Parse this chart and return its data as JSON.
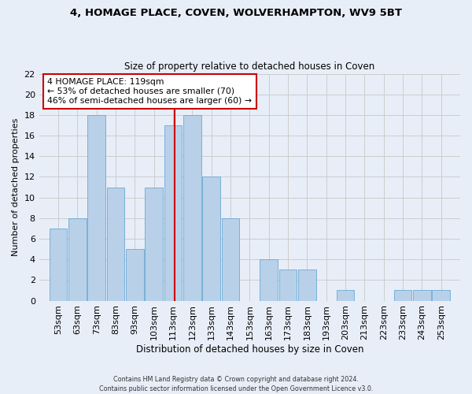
{
  "title": "4, HOMAGE PLACE, COVEN, WOLVERHAMPTON, WV9 5BT",
  "subtitle": "Size of property relative to detached houses in Coven",
  "xlabel": "Distribution of detached houses by size in Coven",
  "ylabel": "Number of detached properties",
  "bin_labels": [
    "53sqm",
    "63sqm",
    "73sqm",
    "83sqm",
    "93sqm",
    "103sqm",
    "113sqm",
    "123sqm",
    "133sqm",
    "143sqm",
    "153sqm",
    "163sqm",
    "173sqm",
    "183sqm",
    "193sqm",
    "203sqm",
    "213sqm",
    "223sqm",
    "233sqm",
    "243sqm",
    "253sqm"
  ],
  "bin_edges": [
    53,
    63,
    73,
    83,
    93,
    103,
    113,
    123,
    133,
    143,
    153,
    163,
    173,
    183,
    193,
    203,
    213,
    223,
    233,
    243,
    253
  ],
  "counts": [
    7,
    8,
    18,
    11,
    5,
    11,
    17,
    18,
    12,
    8,
    0,
    4,
    3,
    3,
    0,
    1,
    0,
    0,
    1,
    1,
    1
  ],
  "bar_color": "#b8d0e8",
  "bar_edge_color": "#6aaad4",
  "grid_color": "#cccccc",
  "background_color": "#e8eef8",
  "plot_bg_color": "#e8eef8",
  "property_line_x": 119,
  "property_line_color": "#cc0000",
  "annotation_text": "4 HOMAGE PLACE: 119sqm\n← 53% of detached houses are smaller (70)\n46% of semi-detached houses are larger (60) →",
  "annotation_box_facecolor": "#ffffff",
  "annotation_box_edgecolor": "#cc0000",
  "ylim": [
    0,
    22
  ],
  "yticks": [
    0,
    2,
    4,
    6,
    8,
    10,
    12,
    14,
    16,
    18,
    20,
    22
  ],
  "footer_line1": "Contains HM Land Registry data © Crown copyright and database right 2024.",
  "footer_line2": "Contains public sector information licensed under the Open Government Licence v3.0."
}
